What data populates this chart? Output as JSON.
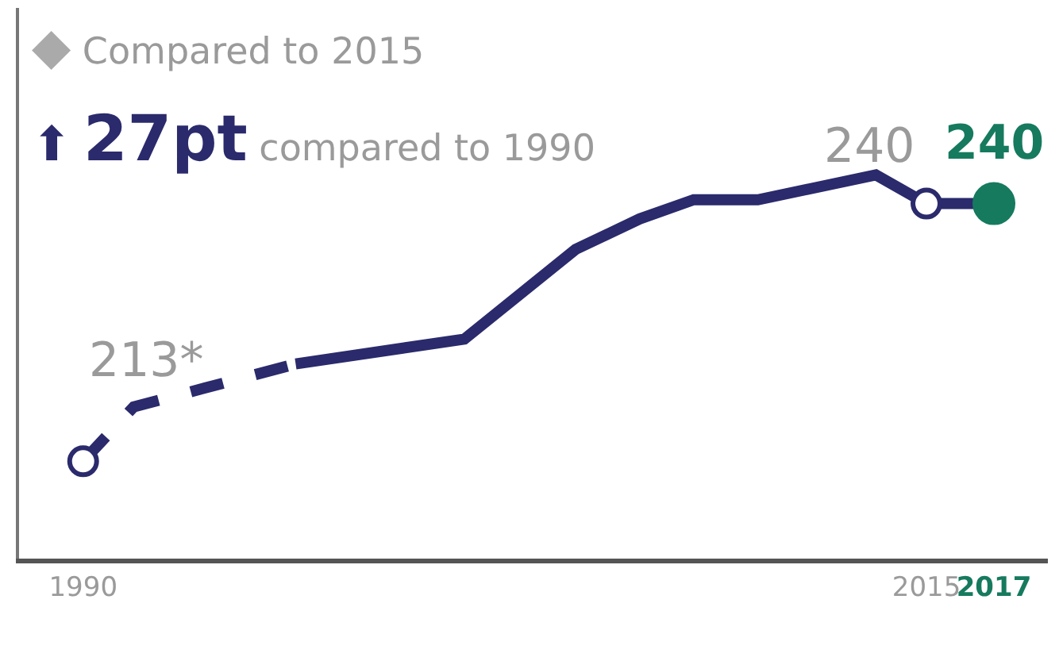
{
  "chart_data": {
    "type": "line",
    "xlim": [
      1988.1,
      2018.6
    ],
    "xticks": [
      1990,
      2015,
      2017
    ],
    "ylim": [
      202.8,
      260.5
    ],
    "tick_labels": "x",
    "series": [
      {
        "line_style": "dashed",
        "marker": "none",
        "color": "#2a2a6c",
        "x": [
          1990,
          1991.5,
          1996.3
        ],
        "values": [
          213,
          218.7,
          223.2
        ]
      },
      {
        "line_style": "solid",
        "marker": "none",
        "color": "#2a2a6c",
        "x": [
          1996.3,
          2001.3,
          2004.6,
          2006.5,
          2008.1,
          2010,
          2013.5,
          2015,
          2017
        ],
        "values": [
          223.2,
          225.8,
          235.2,
          238.4,
          240.4,
          240.4,
          243,
          240,
          240
        ]
      },
      {
        "type": "scatter",
        "marker": "circle-open",
        "color": "#2a2a6c",
        "x": [
          1990
        ],
        "values": [
          213
        ],
        "value_labels": [
          "213*"
        ]
      },
      {
        "type": "scatter",
        "marker": "circle-open",
        "color": "#2a2a6c",
        "x": [
          2015
        ],
        "values": [
          240
        ],
        "value_labels": [
          "240"
        ]
      },
      {
        "type": "scatter",
        "marker": "circle",
        "color": "#167a5e",
        "x": [
          2017
        ],
        "values": [
          240
        ],
        "value_labels": [
          "240"
        ]
      }
    ],
    "annotations": [
      "◆ Compared to 2015",
      "⬆ 27pt compared to 1990"
    ]
  }
}
